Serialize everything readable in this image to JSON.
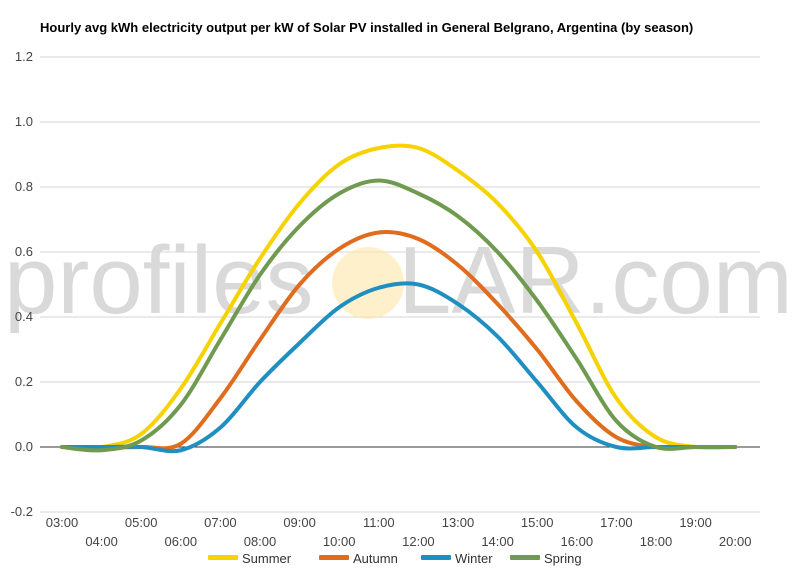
{
  "chart_data": {
    "type": "line",
    "title": "Hourly avg kWh electricity output per kW of Solar PV installed in General Belgrano, Argentina (by season)",
    "xlabel": "",
    "ylabel": "",
    "ylim": [
      -0.2,
      1.2
    ],
    "yticks": [
      "-0.2",
      "0.0",
      "0.2",
      "0.4",
      "0.6",
      "0.8",
      "1.0",
      "1.2"
    ],
    "x": [
      "03:00",
      "04:00",
      "05:00",
      "06:00",
      "07:00",
      "08:00",
      "09:00",
      "10:00",
      "11:00",
      "12:00",
      "13:00",
      "14:00",
      "15:00",
      "16:00",
      "17:00",
      "18:00",
      "19:00",
      "20:00"
    ],
    "grid": true,
    "legend": "bottom",
    "series": [
      {
        "name": "Summer",
        "color": "#f5d200",
        "values": [
          0.0,
          0.0,
          0.04,
          0.18,
          0.38,
          0.58,
          0.75,
          0.87,
          0.92,
          0.92,
          0.85,
          0.75,
          0.6,
          0.38,
          0.15,
          0.03,
          0.0,
          0.0
        ]
      },
      {
        "name": "Autumn",
        "color": "#e06c1e",
        "values": [
          0.0,
          0.0,
          0.0,
          0.01,
          0.15,
          0.33,
          0.5,
          0.61,
          0.66,
          0.64,
          0.56,
          0.44,
          0.3,
          0.14,
          0.03,
          0.0,
          0.0,
          0.0
        ]
      },
      {
        "name": "Winter",
        "color": "#1f8fc2",
        "values": [
          0.0,
          0.0,
          0.0,
          -0.01,
          0.06,
          0.2,
          0.32,
          0.43,
          0.49,
          0.5,
          0.44,
          0.34,
          0.2,
          0.06,
          0.0,
          0.0,
          0.0,
          0.0
        ]
      },
      {
        "name": "Spring",
        "color": "#6f9a4f",
        "values": [
          0.0,
          -0.01,
          0.02,
          0.13,
          0.33,
          0.53,
          0.68,
          0.78,
          0.82,
          0.78,
          0.71,
          0.6,
          0.45,
          0.27,
          0.08,
          0.0,
          0.0,
          0.0
        ]
      }
    ]
  },
  "watermark": {
    "left": "profiles",
    "right": "LAR.com"
  }
}
